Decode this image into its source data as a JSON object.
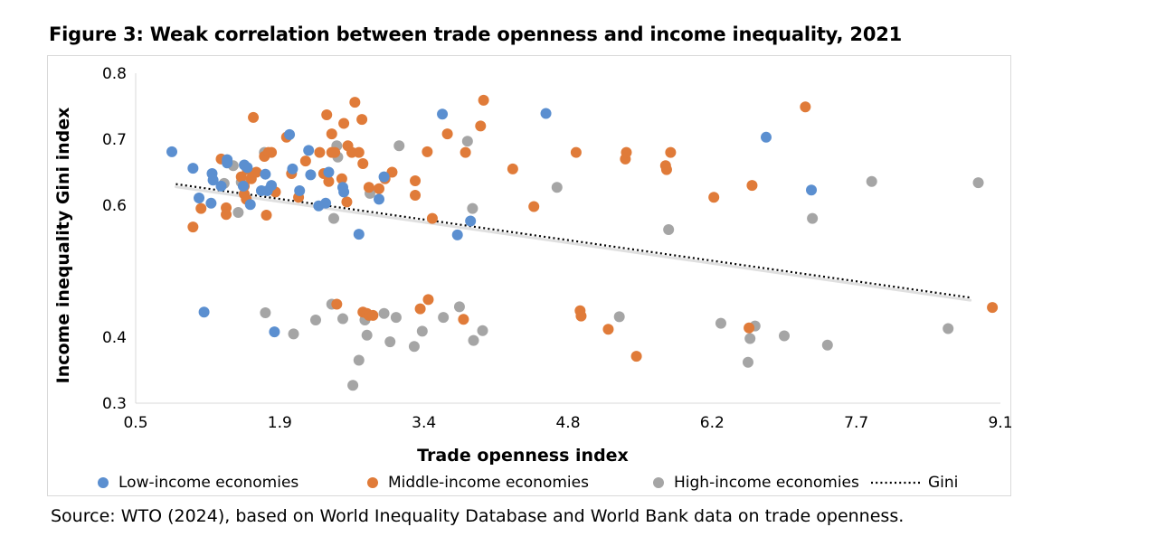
{
  "figure": {
    "title": "Figure 3: Weak correlation between trade openness and income inequality, 2021",
    "source": "Source: WTO (2024), based on World Inequality Database and World Bank data on trade openness."
  },
  "chart_data": {
    "type": "scatter",
    "xlabel": "Trade openness index",
    "ylabel": "Income inequality Gini index",
    "xlim": [
      0.5,
      9.1
    ],
    "ylim": [
      0.3,
      0.8
    ],
    "xticks": [
      "0.5",
      "1.9",
      "3.4",
      "4.8",
      "6.2",
      "7.7",
      "9.1"
    ],
    "yticks": [
      "0.8",
      "0.7",
      "0.6",
      "0.4",
      "0.3"
    ],
    "ytick_values": [
      0.8,
      0.7,
      0.6,
      0.4,
      0.3
    ],
    "grid": false,
    "legend_position": "bottom",
    "trendline": {
      "label": "Gini",
      "type": "linear",
      "x": [
        0.9,
        8.8
      ],
      "y": [
        0.632,
        0.46
      ],
      "style": "dotted"
    },
    "series": [
      {
        "name": "Low-income economies",
        "color": "#5b8fd0",
        "points": [
          [
            0.86,
            0.681
          ],
          [
            1.07,
            0.656
          ],
          [
            1.13,
            0.611
          ],
          [
            1.18,
            0.438
          ],
          [
            1.25,
            0.603
          ],
          [
            1.26,
            0.648
          ],
          [
            1.27,
            0.638
          ],
          [
            1.35,
            0.629
          ],
          [
            1.41,
            0.669
          ],
          [
            1.41,
            0.664
          ],
          [
            1.57,
            0.629
          ],
          [
            1.58,
            0.661
          ],
          [
            1.61,
            0.657
          ],
          [
            1.64,
            0.601
          ],
          [
            1.75,
            0.622
          ],
          [
            1.79,
            0.647
          ],
          [
            1.81,
            0.622
          ],
          [
            1.85,
            0.63
          ],
          [
            1.88,
            0.408
          ],
          [
            2.03,
            0.707
          ],
          [
            2.06,
            0.655
          ],
          [
            2.13,
            0.622
          ],
          [
            2.22,
            0.683
          ],
          [
            2.24,
            0.646
          ],
          [
            2.32,
            0.599
          ],
          [
            2.39,
            0.603
          ],
          [
            2.42,
            0.65
          ],
          [
            2.56,
            0.627
          ],
          [
            2.57,
            0.62
          ],
          [
            2.72,
            0.556
          ],
          [
            2.92,
            0.609
          ],
          [
            2.97,
            0.643
          ],
          [
            3.55,
            0.738
          ],
          [
            3.7,
            0.555
          ],
          [
            3.83,
            0.576
          ],
          [
            4.58,
            0.739
          ],
          [
            6.77,
            0.703
          ],
          [
            7.22,
            0.623
          ]
        ]
      },
      {
        "name": "Middle-income economies",
        "color": "#e07b39",
        "points": [
          [
            1.07,
            0.567
          ],
          [
            1.15,
            0.595
          ],
          [
            1.35,
            0.67
          ],
          [
            1.4,
            0.596
          ],
          [
            1.4,
            0.586
          ],
          [
            1.55,
            0.643
          ],
          [
            1.58,
            0.629
          ],
          [
            1.58,
            0.617
          ],
          [
            1.6,
            0.609
          ],
          [
            1.61,
            0.654
          ],
          [
            1.65,
            0.64
          ],
          [
            1.67,
            0.733
          ],
          [
            1.7,
            0.65
          ],
          [
            1.78,
            0.674
          ],
          [
            1.8,
            0.585
          ],
          [
            1.82,
            0.68
          ],
          [
            1.85,
            0.68
          ],
          [
            1.89,
            0.62
          ],
          [
            2.0,
            0.703
          ],
          [
            2.05,
            0.648
          ],
          [
            2.12,
            0.612
          ],
          [
            2.19,
            0.667
          ],
          [
            2.33,
            0.68
          ],
          [
            2.37,
            0.648
          ],
          [
            2.4,
            0.737
          ],
          [
            2.42,
            0.636
          ],
          [
            2.45,
            0.708
          ],
          [
            2.45,
            0.68
          ],
          [
            2.48,
            0.68
          ],
          [
            2.5,
            0.45
          ],
          [
            2.55,
            0.64
          ],
          [
            2.57,
            0.724
          ],
          [
            2.6,
            0.605
          ],
          [
            2.61,
            0.69
          ],
          [
            2.65,
            0.68
          ],
          [
            2.68,
            0.756
          ],
          [
            2.72,
            0.68
          ],
          [
            2.75,
            0.73
          ],
          [
            2.76,
            0.663
          ],
          [
            2.76,
            0.438
          ],
          [
            2.8,
            0.436
          ],
          [
            2.82,
            0.627
          ],
          [
            2.82,
            0.433
          ],
          [
            2.86,
            0.433
          ],
          [
            2.92,
            0.625
          ],
          [
            2.98,
            0.64
          ],
          [
            3.05,
            0.65
          ],
          [
            3.28,
            0.637
          ],
          [
            3.28,
            0.615
          ],
          [
            3.33,
            0.443
          ],
          [
            3.4,
            0.681
          ],
          [
            3.41,
            0.457
          ],
          [
            3.45,
            0.58
          ],
          [
            3.6,
            0.708
          ],
          [
            3.76,
            0.427
          ],
          [
            3.78,
            0.68
          ],
          [
            3.93,
            0.72
          ],
          [
            3.96,
            0.759
          ],
          [
            4.25,
            0.655
          ],
          [
            4.46,
            0.598
          ],
          [
            4.88,
            0.68
          ],
          [
            4.92,
            0.44
          ],
          [
            4.93,
            0.432
          ],
          [
            5.2,
            0.412
          ],
          [
            5.37,
            0.67
          ],
          [
            5.38,
            0.68
          ],
          [
            5.48,
            0.371
          ],
          [
            5.77,
            0.66
          ],
          [
            5.78,
            0.654
          ],
          [
            5.82,
            0.68
          ],
          [
            6.25,
            0.612
          ],
          [
            6.6,
            0.414
          ],
          [
            6.63,
            0.63
          ],
          [
            7.16,
            0.749
          ],
          [
            9.02,
            0.445
          ]
        ]
      },
      {
        "name": "High-income economies",
        "color": "#a5a5a5",
        "points": [
          [
            1.38,
            0.633
          ],
          [
            1.47,
            0.66
          ],
          [
            1.52,
            0.589
          ],
          [
            1.55,
            0.635
          ],
          [
            1.78,
            0.68
          ],
          [
            1.79,
            0.437
          ],
          [
            2.07,
            0.405
          ],
          [
            2.29,
            0.426
          ],
          [
            2.45,
            0.45
          ],
          [
            2.47,
            0.58
          ],
          [
            2.5,
            0.69
          ],
          [
            2.51,
            0.673
          ],
          [
            2.56,
            0.428
          ],
          [
            2.66,
            0.327
          ],
          [
            2.72,
            0.365
          ],
          [
            2.78,
            0.426
          ],
          [
            2.8,
            0.403
          ],
          [
            2.83,
            0.618
          ],
          [
            2.97,
            0.436
          ],
          [
            3.03,
            0.393
          ],
          [
            3.09,
            0.43
          ],
          [
            3.12,
            0.69
          ],
          [
            3.27,
            0.386
          ],
          [
            3.35,
            0.409
          ],
          [
            3.56,
            0.43
          ],
          [
            3.72,
            0.446
          ],
          [
            3.8,
            0.697
          ],
          [
            3.85,
            0.595
          ],
          [
            3.86,
            0.395
          ],
          [
            3.95,
            0.41
          ],
          [
            4.69,
            0.627
          ],
          [
            5.31,
            0.431
          ],
          [
            5.8,
            0.563
          ],
          [
            6.32,
            0.421
          ],
          [
            6.59,
            0.362
          ],
          [
            6.61,
            0.398
          ],
          [
            6.66,
            0.417
          ],
          [
            6.95,
            0.402
          ],
          [
            7.23,
            0.58
          ],
          [
            7.38,
            0.388
          ],
          [
            7.82,
            0.636
          ],
          [
            8.58,
            0.413
          ],
          [
            8.88,
            0.634
          ]
        ]
      }
    ]
  }
}
